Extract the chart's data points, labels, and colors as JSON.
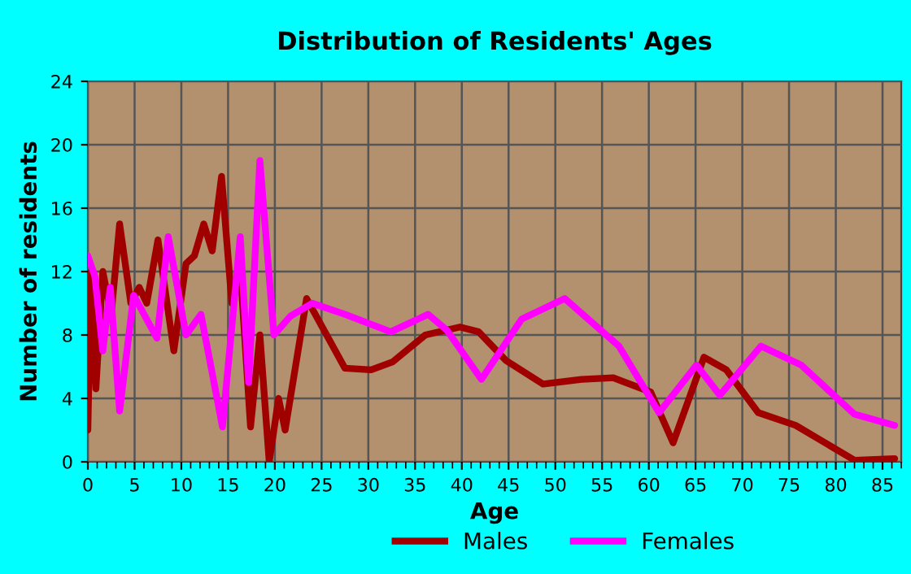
{
  "chart_data": {
    "type": "line",
    "title": "Distribution of Residents' Ages",
    "xlabel": "Age",
    "ylabel": "Number of residents",
    "xlim": [
      0,
      87
    ],
    "xticks": [
      0,
      5,
      10,
      15,
      20,
      25,
      30,
      35,
      40,
      45,
      50,
      55,
      60,
      65,
      70,
      75,
      80,
      85
    ],
    "ylim": [
      0,
      24
    ],
    "yticks": [
      0,
      4,
      8,
      12,
      16,
      20,
      24
    ],
    "grid": true,
    "legend": "bottom",
    "series": [
      {
        "name": "Males",
        "color": "#a00000",
        "x": [
          0,
          0.35,
          0.86,
          1.6,
          2.5,
          3.4,
          4.6,
          5.5,
          6.3,
          7.5,
          9.2,
          10.5,
          11.4,
          12.4,
          13.3,
          14.3,
          15.4,
          16.3,
          17.4,
          18.4,
          19.4,
          20.4,
          21.1,
          23.4,
          27.5,
          30.3,
          32.6,
          36.1,
          39.8,
          41.8,
          44.7,
          48.7,
          52.8,
          56.2,
          60.2,
          62.6,
          65.9,
          68.3,
          71.7,
          75.7,
          82,
          86.3
        ],
        "values": [
          2,
          12,
          4.6,
          12,
          9.3,
          15,
          10,
          11,
          10,
          14,
          7,
          12.5,
          13,
          15,
          13.3,
          18,
          10,
          12.2,
          2.2,
          8,
          0,
          4,
          2,
          10.3,
          5.9,
          5.8,
          6.3,
          8,
          8.5,
          8.2,
          6.4,
          4.9,
          5.2,
          5.3,
          4.4,
          1.2,
          6.6,
          5.8,
          3.1,
          2.3,
          0.1,
          0.2
        ]
      },
      {
        "name": "Females",
        "color": "#ff00ff",
        "x": [
          0,
          0.75,
          1.6,
          2.4,
          3.4,
          4.9,
          7.4,
          8.6,
          10.5,
          12.1,
          14.4,
          16.3,
          17.2,
          18.4,
          19.9,
          21.7,
          24,
          27.5,
          32.4,
          36.4,
          38.4,
          42.1,
          46.4,
          51,
          56.8,
          61.1,
          65.1,
          67.6,
          72,
          76.3,
          82,
          86.3
        ],
        "values": [
          13,
          11.7,
          7,
          11,
          3.2,
          10.5,
          7.8,
          14.2,
          8,
          9.3,
          2.2,
          14.2,
          5,
          19,
          8,
          9.2,
          10,
          9.3,
          8.2,
          9.3,
          8.3,
          5.2,
          9,
          10.3,
          7.3,
          3.1,
          6.1,
          4.2,
          7.3,
          6.1,
          3,
          2.3
        ]
      }
    ]
  }
}
